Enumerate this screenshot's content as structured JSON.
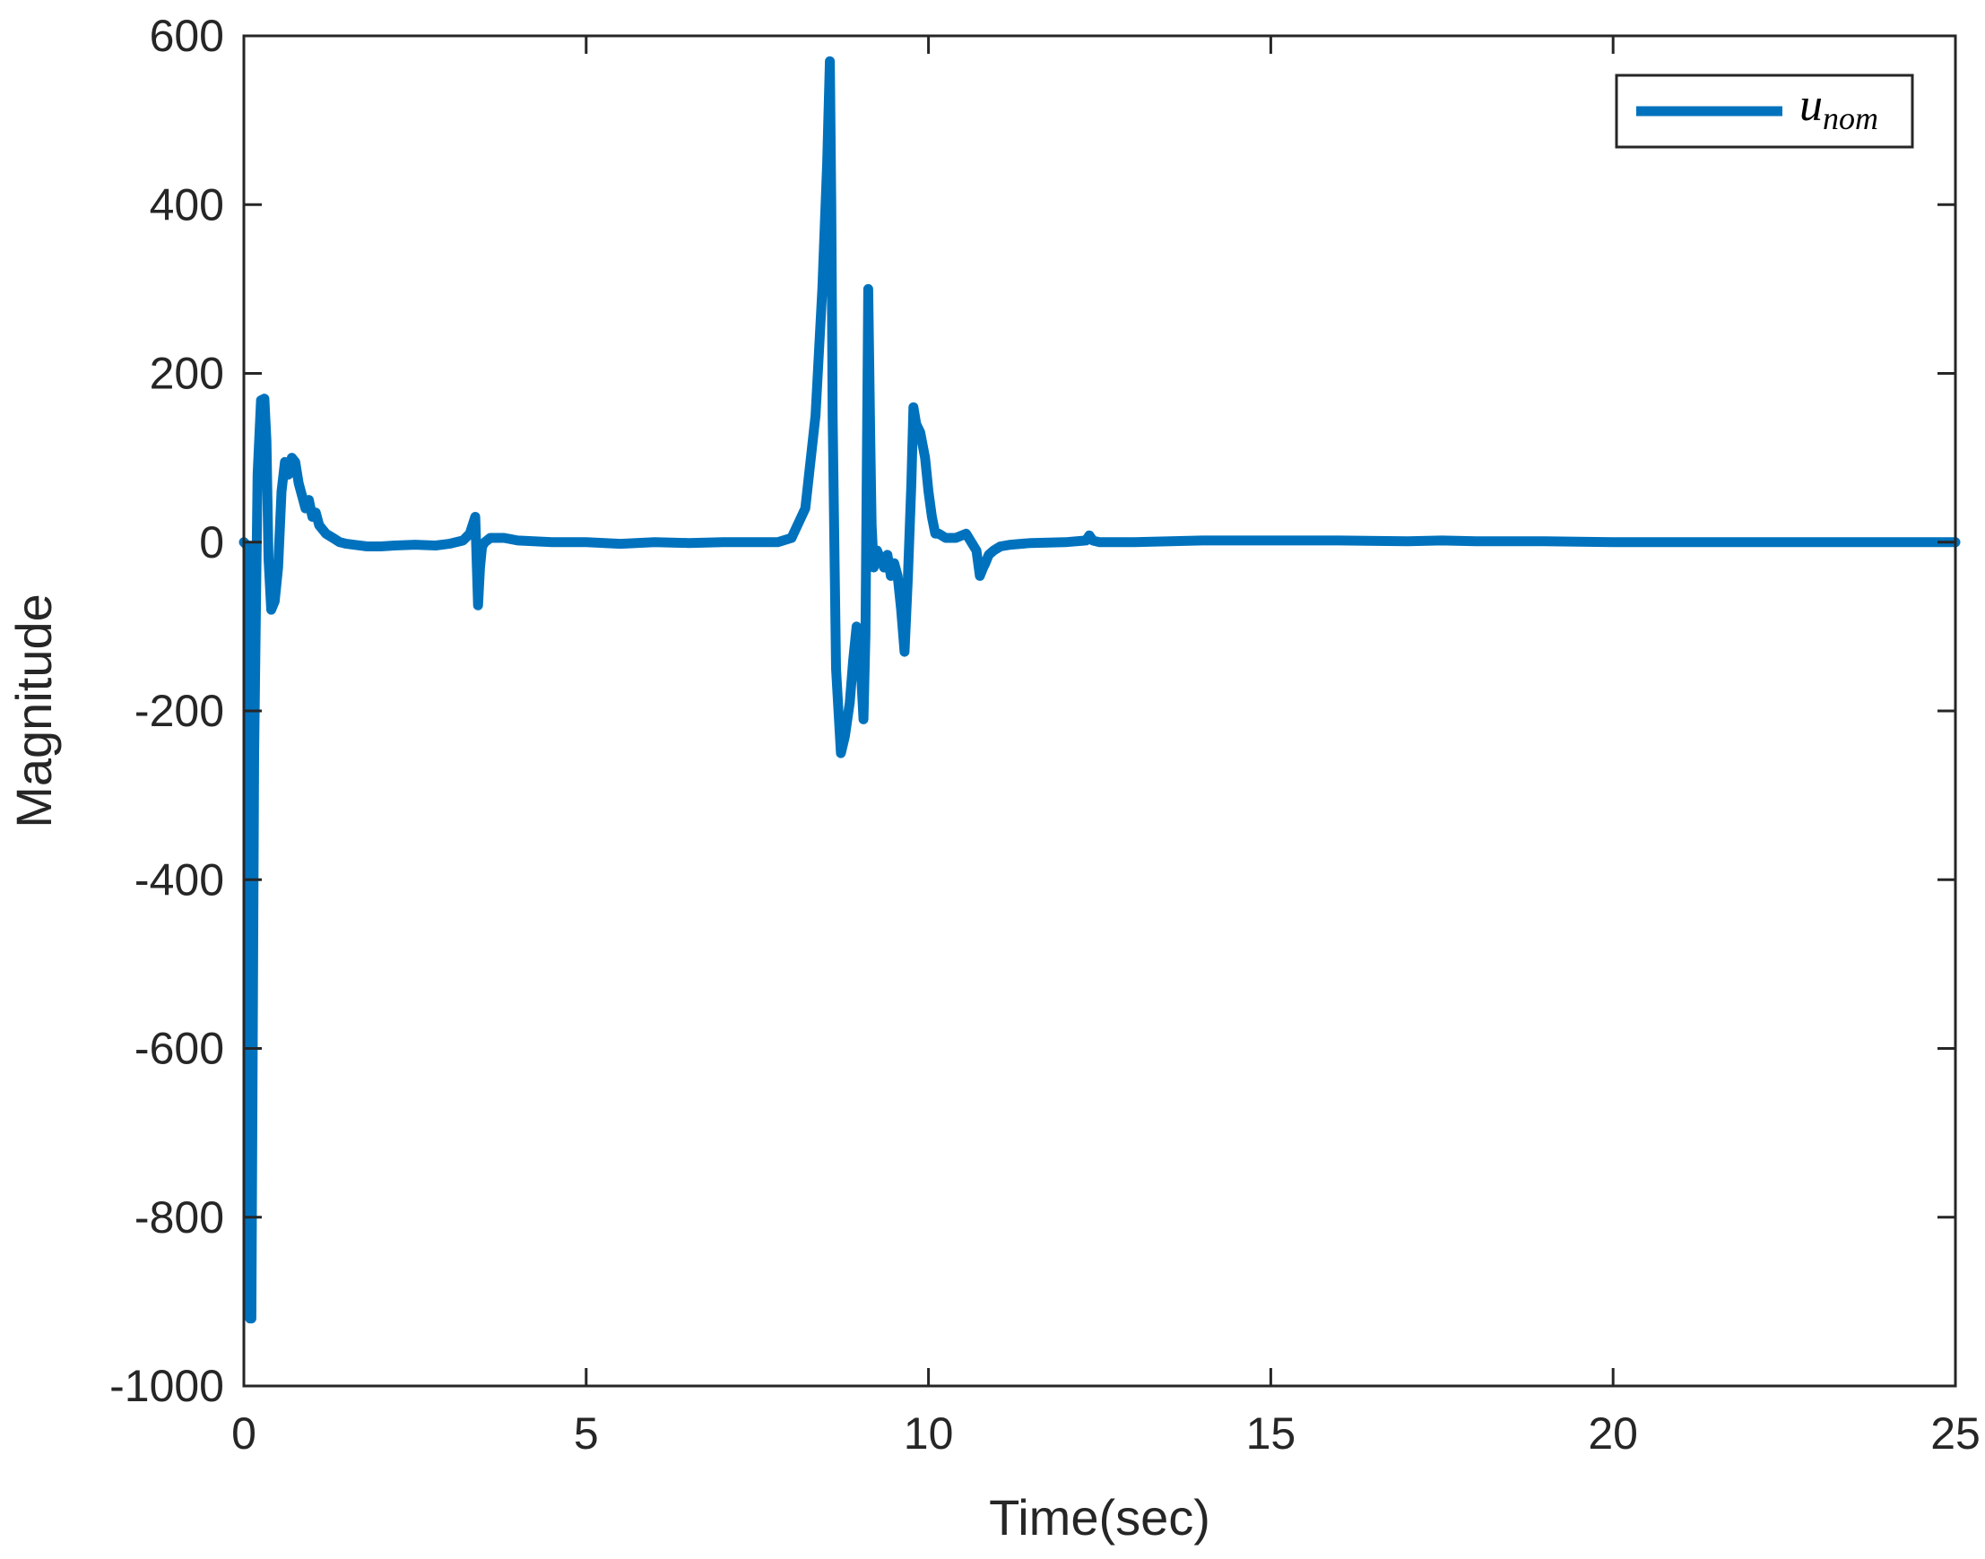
{
  "chart_data": {
    "type": "line",
    "xlabel": "Time(sec)",
    "ylabel": "Magnitude",
    "xlim": [
      0,
      25
    ],
    "ylim": [
      -1000,
      600
    ],
    "xticks": [
      0,
      5,
      10,
      15,
      20,
      25
    ],
    "xtick_labels": [
      "0",
      "5",
      "10",
      "15",
      "20",
      "25"
    ],
    "yticks": [
      -1000,
      -800,
      -600,
      -400,
      -200,
      0,
      200,
      400,
      600
    ],
    "ytick_labels": [
      "-1000",
      "-800",
      "-600",
      "-400",
      "-200",
      "0",
      "200",
      "400",
      "600"
    ],
    "grid": false,
    "legend": {
      "position": "top-right",
      "entries": [
        {
          "base": "u",
          "subscript": "nom"
        }
      ]
    },
    "colors": {
      "series": "#0072BD",
      "axes": "#262626"
    },
    "series": [
      {
        "label_base": "u",
        "label_subscript": "nom",
        "x": [
          0,
          0.06,
          0.09,
          0.11,
          0.15,
          0.2,
          0.25,
          0.3,
          0.33,
          0.36,
          0.4,
          0.45,
          0.5,
          0.55,
          0.6,
          0.65,
          0.7,
          0.75,
          0.8,
          0.85,
          0.9,
          0.95,
          1.0,
          1.05,
          1.1,
          1.2,
          1.3,
          1.4,
          1.5,
          1.6,
          1.8,
          2.0,
          2.2,
          2.5,
          2.8,
          3.0,
          3.2,
          3.3,
          3.38,
          3.42,
          3.45,
          3.48,
          3.52,
          3.6,
          3.8,
          4.0,
          4.5,
          5.0,
          5.5,
          6.0,
          6.5,
          7.0,
          7.5,
          7.8,
          8.0,
          8.2,
          8.35,
          8.45,
          8.52,
          8.56,
          8.58,
          8.6,
          8.65,
          8.72,
          8.78,
          8.85,
          8.9,
          8.95,
          9.0,
          9.05,
          9.08,
          9.12,
          9.15,
          9.17,
          9.2,
          9.25,
          9.3,
          9.35,
          9.4,
          9.45,
          9.5,
          9.55,
          9.6,
          9.65,
          9.7,
          9.75,
          9.78,
          9.82,
          9.88,
          9.95,
          10.0,
          10.05,
          10.1,
          10.15,
          10.25,
          10.4,
          10.55,
          10.7,
          10.75,
          10.8,
          10.83,
          10.88,
          10.95,
          11.05,
          11.2,
          11.35,
          11.5,
          12.0,
          12.3,
          12.35,
          12.4,
          12.5,
          13.0,
          14.0,
          15.0,
          16.0,
          17.0,
          17.5,
          18.0,
          18.5,
          19.0,
          20.0,
          22.0,
          25.0
        ],
        "y": [
          0,
          -5,
          -920,
          -920,
          -250,
          80,
          168,
          170,
          120,
          -20,
          -80,
          -70,
          -30,
          60,
          95,
          80,
          100,
          95,
          70,
          55,
          40,
          50,
          30,
          35,
          20,
          10,
          5,
          0,
          -2,
          -3,
          -5,
          -5,
          -4,
          -3,
          -4,
          -2,
          2,
          10,
          30,
          -75,
          -30,
          -5,
          0,
          5,
          5,
          2,
          0,
          0,
          -2,
          0,
          -1,
          0,
          0,
          0,
          5,
          40,
          150,
          300,
          450,
          570,
          400,
          150,
          -150,
          -250,
          -230,
          -190,
          -140,
          -100,
          -130,
          -210,
          -110,
          300,
          120,
          20,
          -30,
          -10,
          -20,
          -30,
          -15,
          -40,
          -25,
          -40,
          -80,
          -130,
          -40,
          70,
          160,
          140,
          130,
          100,
          60,
          30,
          10,
          10,
          5,
          5,
          10,
          -10,
          -40,
          -30,
          -25,
          -15,
          -10,
          -5,
          -3,
          -2,
          -1,
          0,
          2,
          8,
          2,
          0,
          0,
          2,
          2,
          2,
          1,
          2,
          1,
          1,
          1,
          0,
          0,
          0
        ]
      }
    ]
  }
}
